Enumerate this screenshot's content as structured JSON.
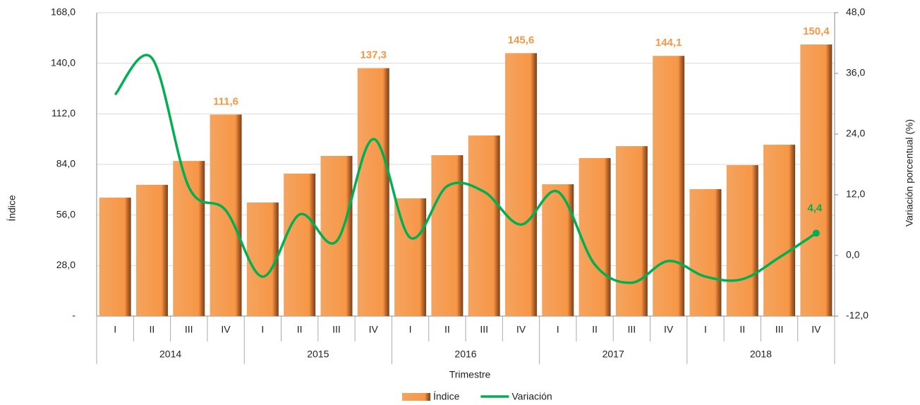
{
  "chart_data": {
    "type": "bar_line",
    "categories": [
      "I",
      "II",
      "III",
      "IV",
      "I",
      "II",
      "III",
      "IV",
      "I",
      "II",
      "III",
      "IV",
      "I",
      "II",
      "III",
      "IV",
      "I",
      "II",
      "III",
      "IV"
    ],
    "groups": [
      "2014",
      "2015",
      "2016",
      "2017",
      "2018"
    ],
    "xlabel": "Trimestre",
    "ylabel": "Índice",
    "y2label": "Variación porcentual (%)",
    "series": [
      {
        "name": "Índice",
        "type": "bar",
        "color": "#f79646",
        "values": [
          65.6,
          72.7,
          85.9,
          111.6,
          62.9,
          78.9,
          88.7,
          137.3,
          65.2,
          89.1,
          100.0,
          145.6,
          73.0,
          87.5,
          94.1,
          144.1,
          70.3,
          83.6,
          94.9,
          150.4
        ],
        "value_labels": [
          null,
          null,
          null,
          "111,6",
          null,
          null,
          null,
          "137,3",
          null,
          null,
          null,
          "145,6",
          null,
          null,
          null,
          "144,1",
          null,
          null,
          null,
          "150,4"
        ]
      },
      {
        "name": "Variación",
        "type": "line",
        "axis": "y2",
        "color": "#00b050",
        "values": [
          31.8,
          39.0,
          13.5,
          8.9,
          -4.2,
          8.1,
          2.8,
          23.0,
          3.5,
          13.7,
          12.6,
          6.1,
          12.6,
          -1.8,
          -5.4,
          -1.1,
          -4.2,
          -4.7,
          -0.4,
          4.4
        ],
        "value_labels": [
          null,
          null,
          null,
          null,
          null,
          null,
          null,
          null,
          null,
          null,
          null,
          null,
          null,
          null,
          null,
          null,
          null,
          null,
          null,
          "4,4"
        ]
      }
    ],
    "ylim": [
      0,
      168
    ],
    "yticks": [
      {
        "value": 0,
        "label": "-"
      },
      {
        "value": 28,
        "label": "28,0"
      },
      {
        "value": 56,
        "label": "56,0"
      },
      {
        "value": 84,
        "label": "84,0"
      },
      {
        "value": 112,
        "label": "112,0"
      },
      {
        "value": 140,
        "label": "140,0"
      },
      {
        "value": 168,
        "label": "168,0"
      }
    ],
    "y2lim": [
      -12,
      48
    ],
    "y2ticks": [
      {
        "value": -12,
        "label": "-12,0"
      },
      {
        "value": 0,
        "label": "0,0"
      },
      {
        "value": 12,
        "label": "12,0"
      },
      {
        "value": 24,
        "label": "24,0"
      },
      {
        "value": 36,
        "label": "36,0"
      },
      {
        "value": 48,
        "label": "48,0"
      }
    ],
    "grid": true
  }
}
